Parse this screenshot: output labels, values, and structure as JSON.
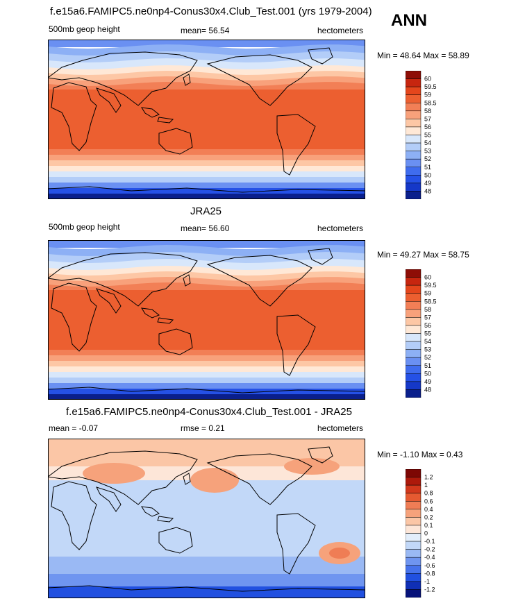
{
  "season": "ANN",
  "colors": {
    "abs_scale": [
      "#0a1f8c",
      "#1538c8",
      "#2551e6",
      "#3f6cee",
      "#6a90f2",
      "#8db0f5",
      "#b3cdf8",
      "#d8e7fb",
      "#ffe8d6",
      "#fdc7a5",
      "#f8a17b",
      "#f27f56",
      "#ec5f30",
      "#e4461c",
      "#c7260f",
      "#8e0d06"
    ],
    "diff_scale": [
      "#06127a",
      "#0f2fb5",
      "#2150e0",
      "#4672eb",
      "#6f95f0",
      "#9ab9f4",
      "#c2d8f8",
      "#e3eefb",
      "#fde6d8",
      "#fbc6a6",
      "#f6a27b",
      "#ef7d55",
      "#e65a31",
      "#d2381c",
      "#ad190b",
      "#7d0704"
    ]
  },
  "panels": [
    {
      "title": "f.e15a6.FAMIPC5.ne0np4-Conus30x4.Club_Test.001 (yrs 1979-2004)",
      "left_label": "500mb geop height",
      "mid_label": "mean=  56.54",
      "right_label": "hectometers",
      "minmax": "Min = 48.64 Max = 58.89",
      "colorbar_labels": [
        "60",
        "59.5",
        "59",
        "58.5",
        "58",
        "57",
        "56",
        "55",
        "54",
        "53",
        "52",
        "51",
        "50",
        "49",
        "48"
      ]
    },
    {
      "title": "JRA25",
      "left_label": "500mb geop height",
      "mid_label": "mean=  56.60",
      "right_label": "hectometers",
      "minmax": "Min = 49.27 Max = 58.75",
      "colorbar_labels": [
        "60",
        "59.5",
        "59",
        "58.5",
        "58",
        "57",
        "56",
        "55",
        "54",
        "53",
        "52",
        "51",
        "50",
        "49",
        "48"
      ]
    },
    {
      "title": "f.e15a6.FAMIPC5.ne0np4-Conus30x4.Club_Test.001 - JRA25",
      "left_label": "mean =  -0.07",
      "mid_label": "rmse =   0.21",
      "right_label": "hectometers",
      "minmax": "Min =  -1.10 Max =   0.43",
      "colorbar_labels": [
        "1.2",
        "1",
        "0.8",
        "0.6",
        "0.4",
        "0.2",
        "0.1",
        "0",
        "-0.1",
        "-0.2",
        "-0.4",
        "-0.6",
        "-0.8",
        "-1",
        "-1.2"
      ]
    }
  ]
}
